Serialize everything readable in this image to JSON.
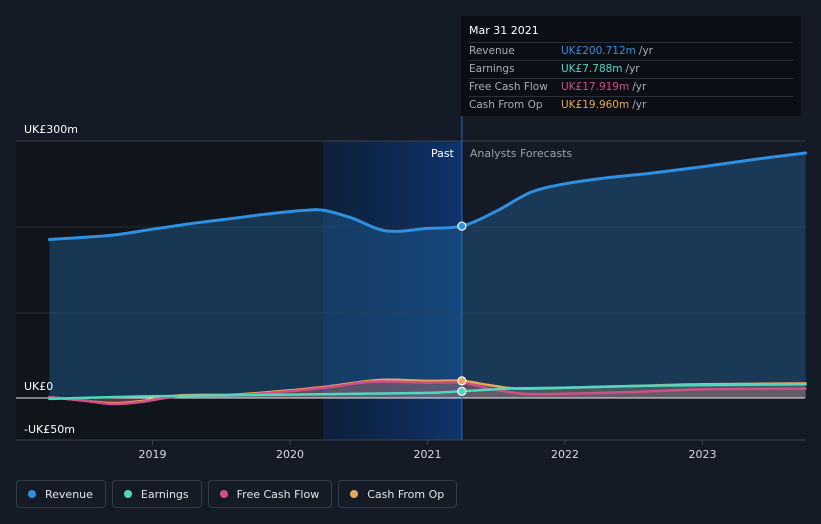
{
  "chart_data": {
    "type": "line",
    "y_label_top": "UK£300m",
    "y_label_zero": "UK£0",
    "y_label_bottom": "-UK£50m",
    "ylim": [
      -50,
      300
    ],
    "x_ticks": [
      {
        "label": "2019",
        "x": 2019.0
      },
      {
        "label": "2020",
        "x": 2020.0
      },
      {
        "label": "2021",
        "x": 2021.0
      },
      {
        "label": "2022",
        "x": 2022.0
      },
      {
        "label": "2023",
        "x": 2023.0
      }
    ],
    "past_label": "Past",
    "forecast_label": "Analysts Forecasts",
    "divider_x": 2021.25,
    "past_band_start": 2020.24,
    "series": [
      {
        "name": "Revenue",
        "color": "#2f8fe0",
        "points": [
          [
            2018.25,
            185
          ],
          [
            2018.7,
            190
          ],
          [
            2019.0,
            197
          ],
          [
            2019.3,
            204
          ],
          [
            2019.6,
            210
          ],
          [
            2019.85,
            215
          ],
          [
            2020.1,
            219
          ],
          [
            2020.25,
            219
          ],
          [
            2020.45,
            210
          ],
          [
            2020.7,
            195
          ],
          [
            2021.0,
            198
          ],
          [
            2021.25,
            200.7
          ],
          [
            2021.5,
            218
          ],
          [
            2021.75,
            240
          ],
          [
            2022.0,
            250
          ],
          [
            2022.3,
            257
          ],
          [
            2022.6,
            262
          ],
          [
            2023.0,
            270
          ],
          [
            2023.4,
            279
          ],
          [
            2023.75,
            286
          ]
        ]
      },
      {
        "name": "Earnings",
        "color": "#52d6bf",
        "points": [
          [
            2018.25,
            -1
          ],
          [
            2018.7,
            1
          ],
          [
            2019.0,
            2
          ],
          [
            2019.5,
            3
          ],
          [
            2020.0,
            4
          ],
          [
            2020.5,
            5
          ],
          [
            2021.0,
            6
          ],
          [
            2021.25,
            7.788
          ],
          [
            2021.6,
            11
          ],
          [
            2022.0,
            12
          ],
          [
            2022.5,
            14
          ],
          [
            2023.0,
            15
          ],
          [
            2023.75,
            16
          ]
        ]
      },
      {
        "name": "Free Cash Flow",
        "color": "#cf4f87",
        "points": [
          [
            2018.25,
            1
          ],
          [
            2018.5,
            -3
          ],
          [
            2018.7,
            -7
          ],
          [
            2018.9,
            -5
          ],
          [
            2019.2,
            2
          ],
          [
            2019.6,
            3
          ],
          [
            2020.0,
            8
          ],
          [
            2020.3,
            13
          ],
          [
            2020.6,
            19
          ],
          [
            2021.0,
            18
          ],
          [
            2021.25,
            17.919
          ],
          [
            2021.45,
            11
          ],
          [
            2021.7,
            5
          ],
          [
            2022.0,
            5
          ],
          [
            2022.5,
            7
          ],
          [
            2023.0,
            10
          ],
          [
            2023.75,
            11
          ]
        ]
      },
      {
        "name": "Cash From Op",
        "color": "#e8a55d",
        "points": [
          [
            2018.25,
            1
          ],
          [
            2018.5,
            -3
          ],
          [
            2018.7,
            -6
          ],
          [
            2018.9,
            -4
          ],
          [
            2019.2,
            3
          ],
          [
            2019.6,
            4
          ],
          [
            2020.0,
            9
          ],
          [
            2020.3,
            14
          ],
          [
            2020.65,
            21
          ],
          [
            2021.0,
            20
          ],
          [
            2021.25,
            19.96
          ],
          [
            2021.45,
            15
          ],
          [
            2021.65,
            11
          ],
          [
            2022.0,
            12
          ],
          [
            2022.5,
            14
          ],
          [
            2023.0,
            16
          ],
          [
            2023.75,
            17
          ]
        ]
      }
    ]
  },
  "tooltip": {
    "date": "Mar 31 2021",
    "rows": [
      {
        "label": "Revenue",
        "value": "UK£200.712m",
        "unit": "/yr",
        "color": "#2f8fe0"
      },
      {
        "label": "Earnings",
        "value": "UK£7.788m",
        "unit": "/yr",
        "color": "#52d6bf"
      },
      {
        "label": "Free Cash Flow",
        "value": "UK£17.919m",
        "unit": "/yr",
        "color": "#cf4f87"
      },
      {
        "label": "Cash From Op",
        "value": "UK£19.960m",
        "unit": "/yr",
        "color": "#e8a55d"
      }
    ]
  },
  "legend": [
    {
      "label": "Revenue",
      "color": "#2f8fe0"
    },
    {
      "label": "Earnings",
      "color": "#52d6bf"
    },
    {
      "label": "Free Cash Flow",
      "color": "#cf4f87"
    },
    {
      "label": "Cash From Op",
      "color": "#e8a55d"
    }
  ]
}
